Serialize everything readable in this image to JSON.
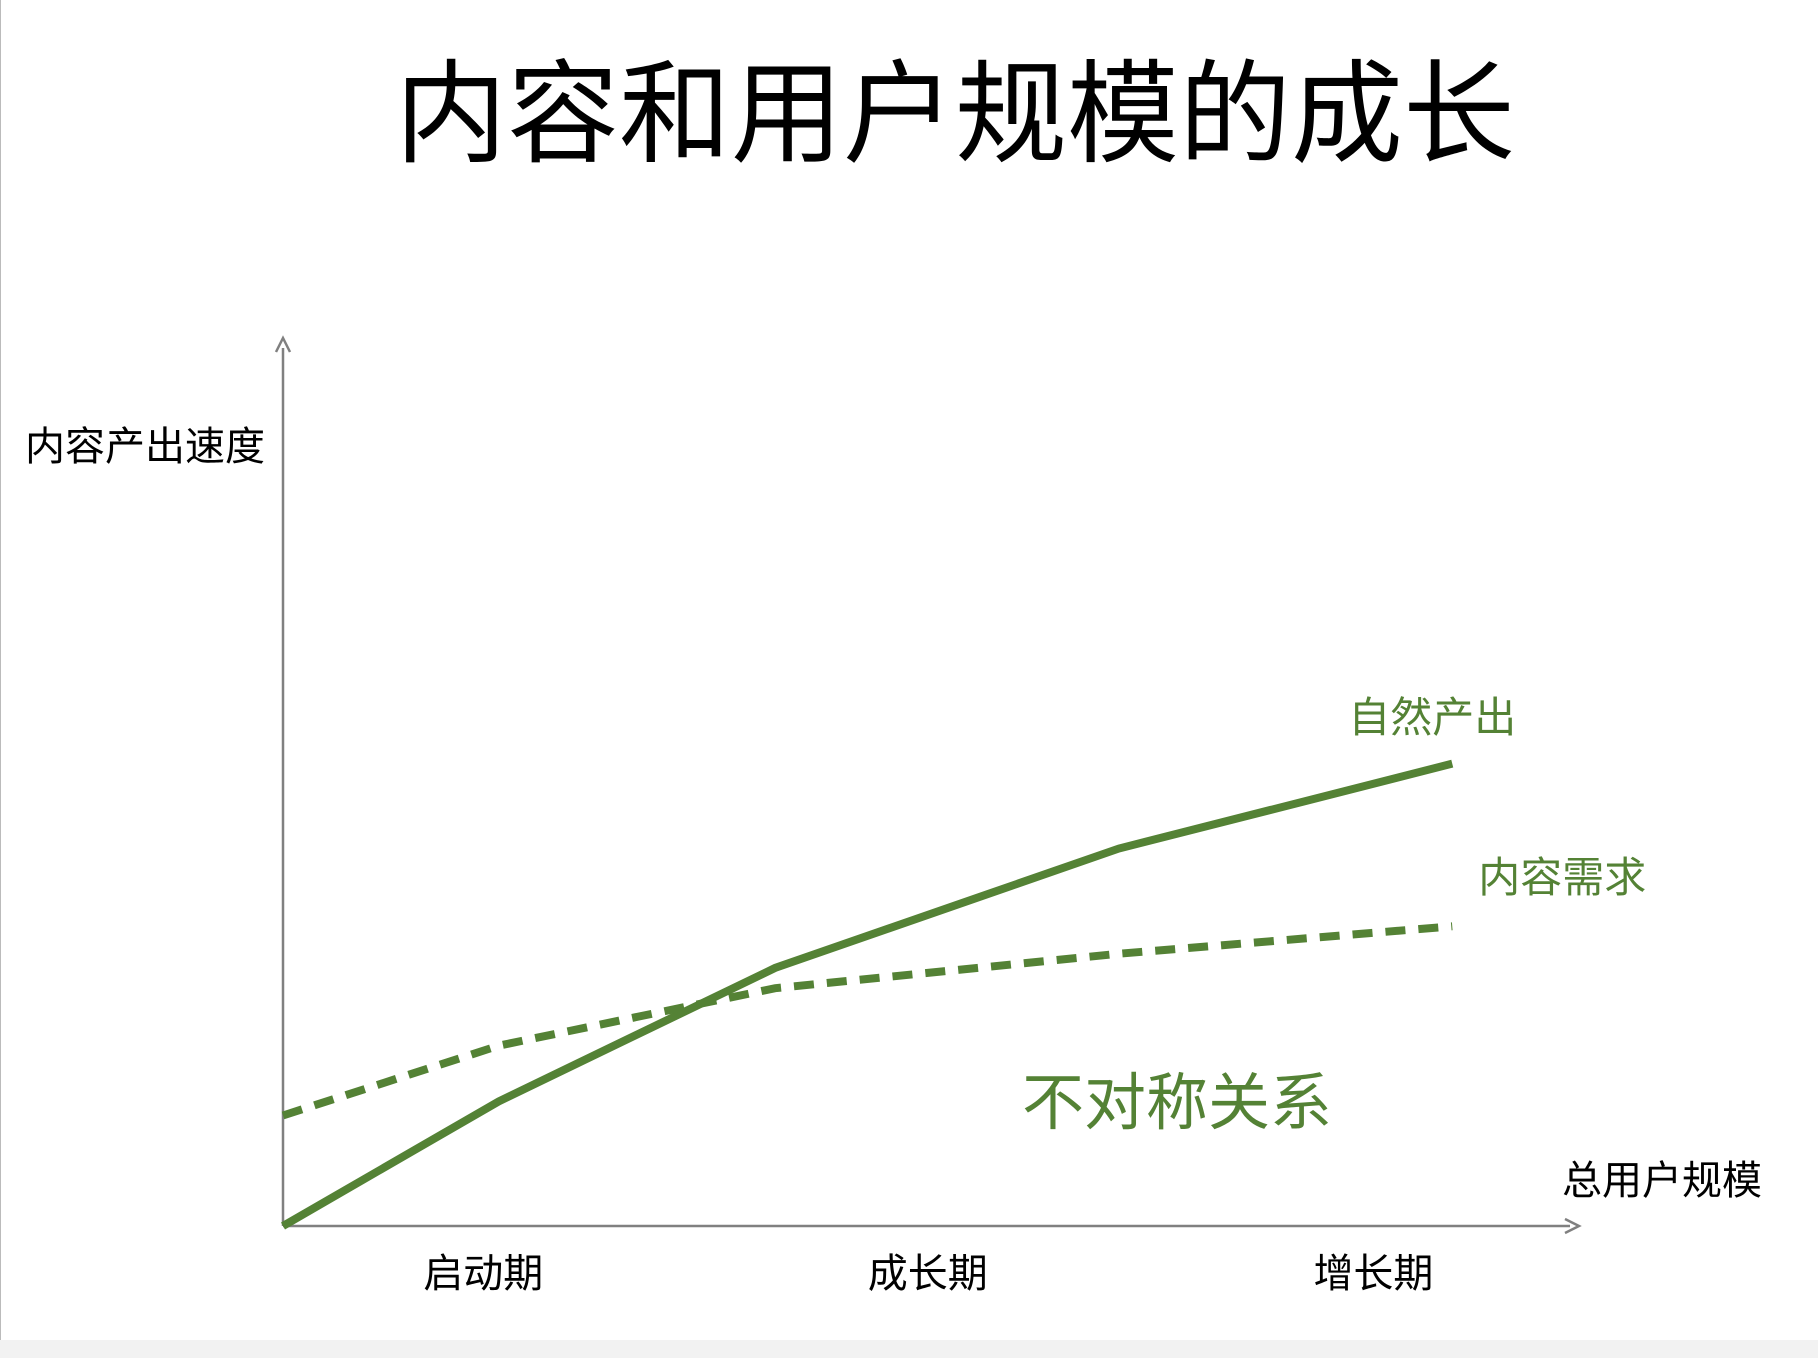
{
  "chart_data": {
    "type": "line",
    "title": "内容和用户规模的成长",
    "y_label": "内容产出速度",
    "x_label": "总用户规模",
    "annotation": "不对称关系",
    "xlim": [
      0,
      100
    ],
    "ylim": [
      0,
      100
    ],
    "xticks": [
      {
        "value": 15.5,
        "label": "启动期"
      },
      {
        "value": 49.9,
        "label": "成长期"
      },
      {
        "value": 84.4,
        "label": "增长期"
      }
    ],
    "x": [
      0,
      16.7,
      38.1,
      64.7,
      90.5
    ],
    "series": [
      {
        "name": "自然产出",
        "color": "#548235",
        "dashed": false,
        "values": [
          0,
          14.1,
          29.2,
          42.7,
          52.3
        ]
      },
      {
        "name": "内容需求",
        "color": "#548235",
        "dashed": true,
        "values": [
          12.5,
          20.4,
          26.9,
          30.8,
          33.9
        ]
      }
    ]
  }
}
